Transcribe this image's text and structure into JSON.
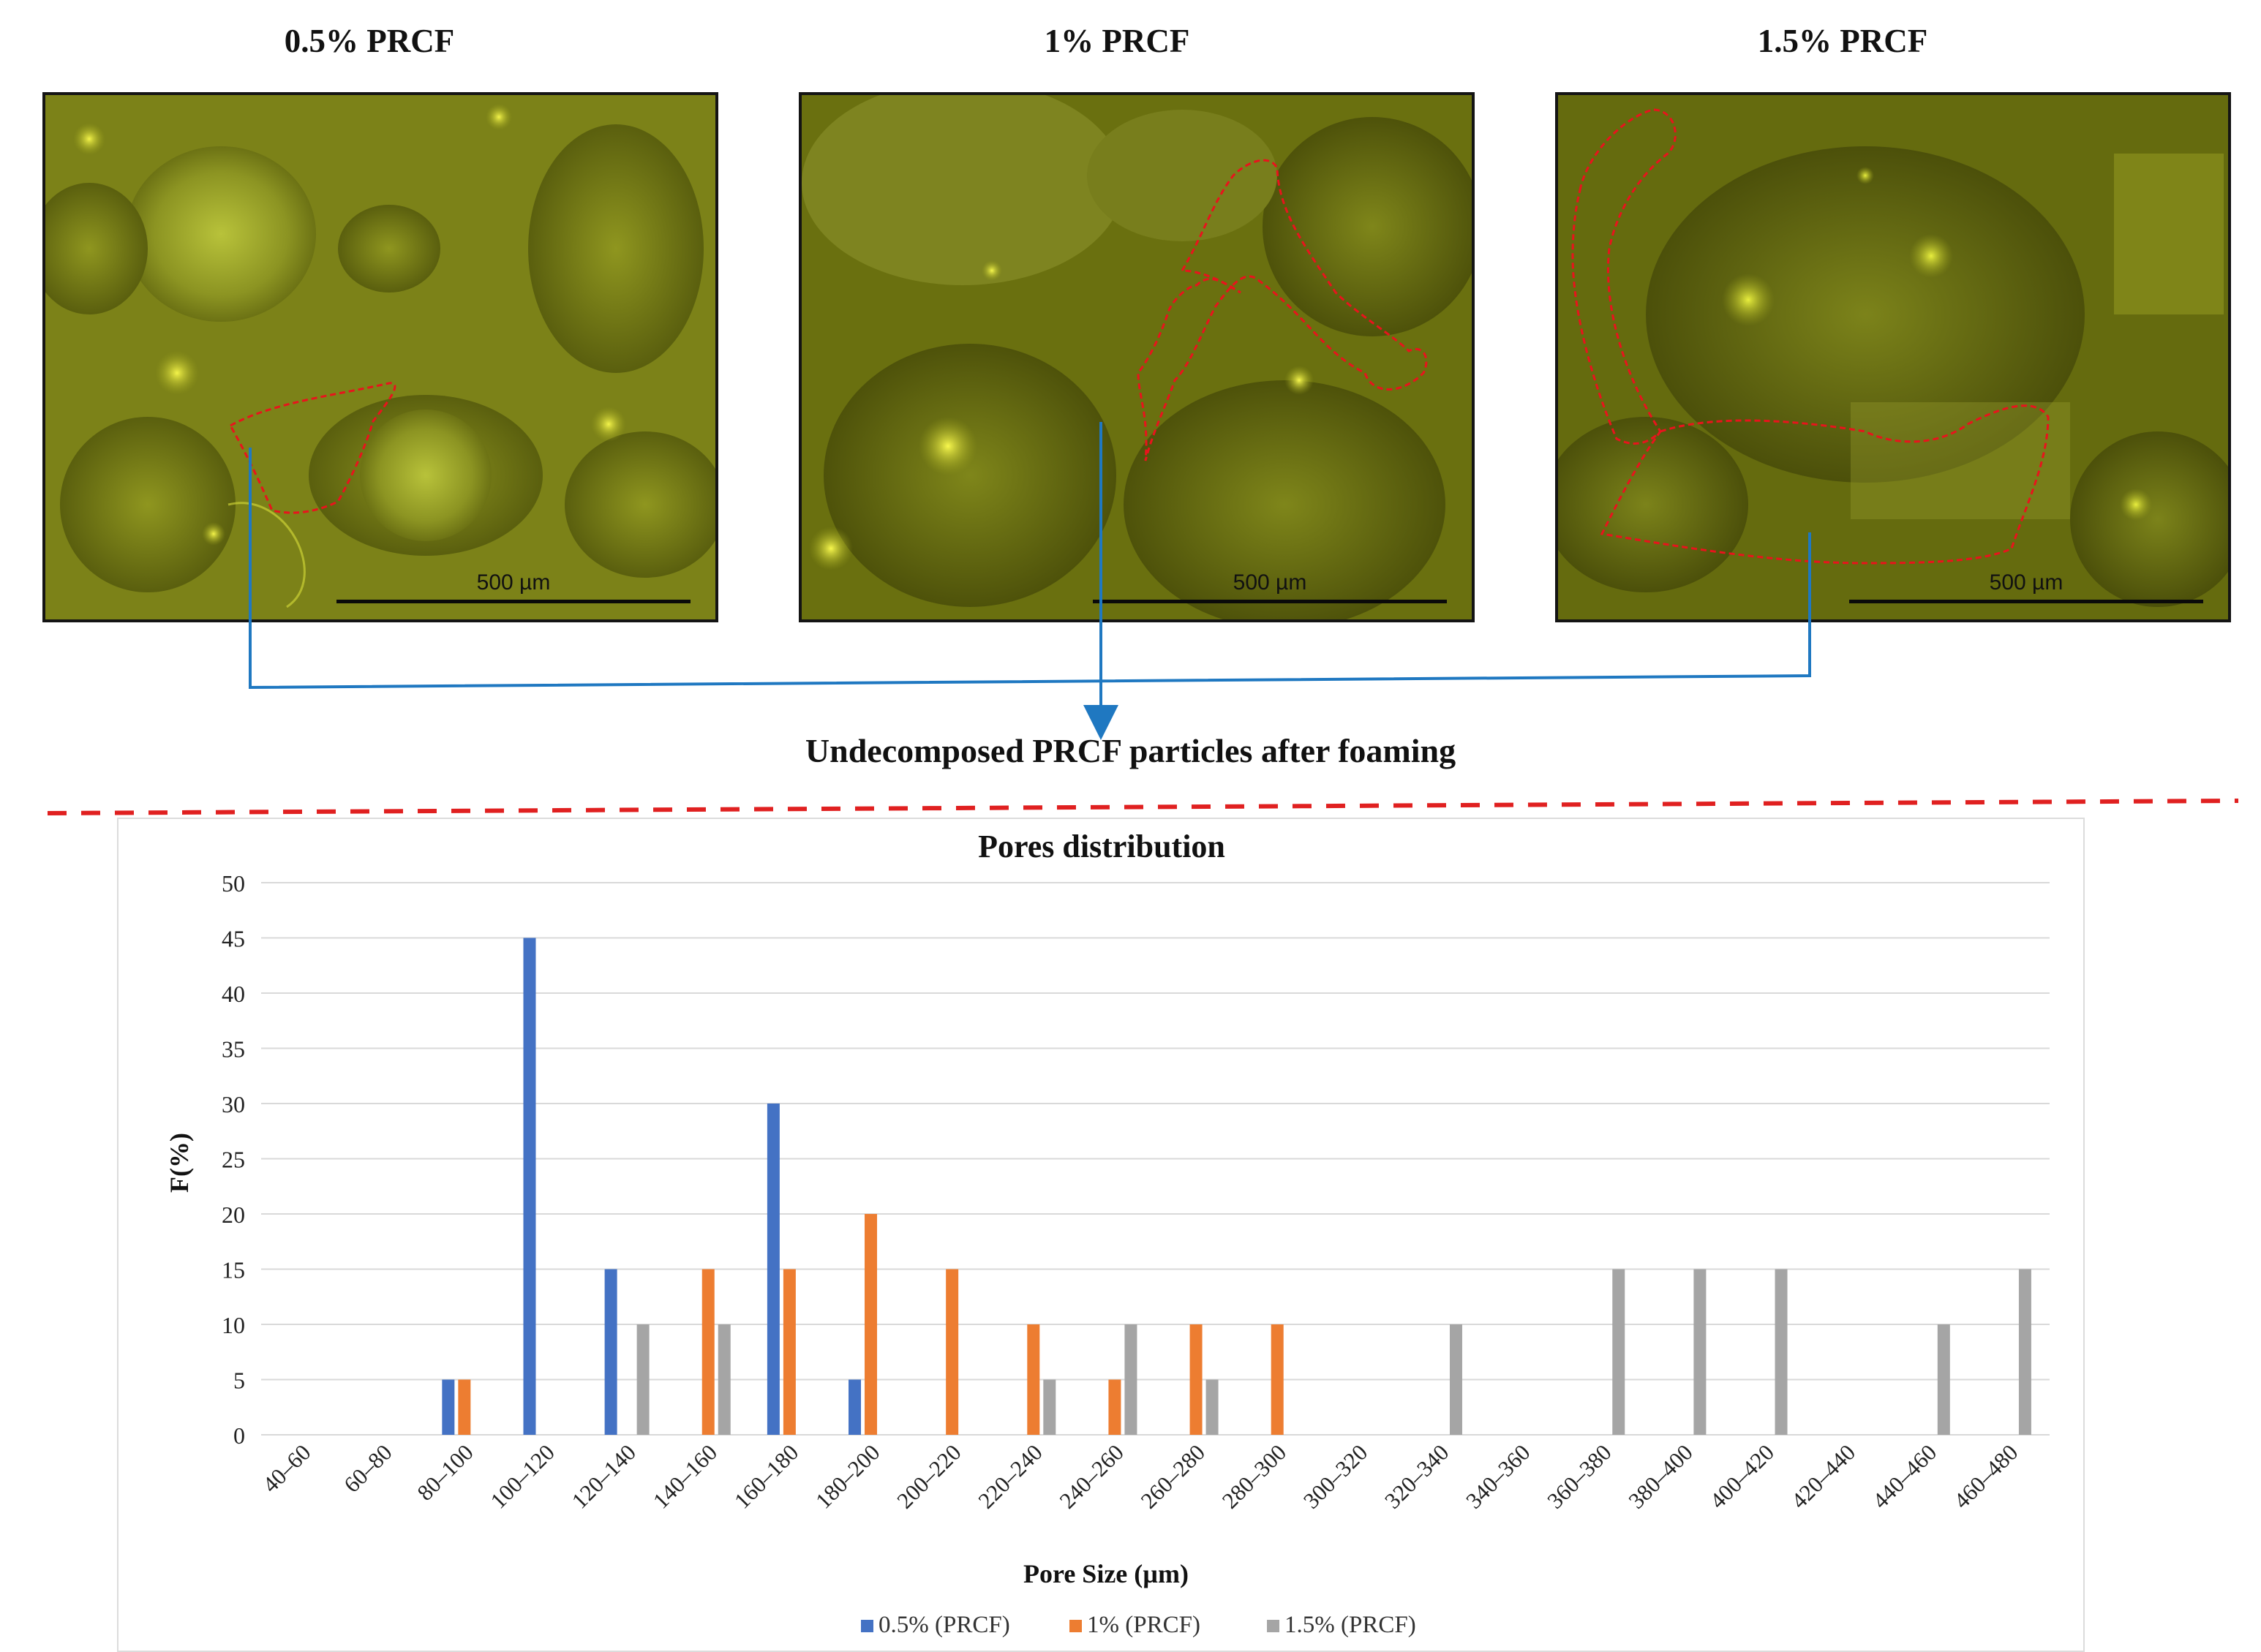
{
  "panels": [
    {
      "title": "0.5% PRCF",
      "scale_label": "500 µm"
    },
    {
      "title": "1% PRCF",
      "scale_label": "500 µm"
    },
    {
      "title": "1.5% PRCF",
      "scale_label": "500 µm"
    }
  ],
  "callout": {
    "label": "Undecomposed PRCF particles after foaming"
  },
  "colors": {
    "series_1": "#4472c4",
    "series_2": "#ed7d31",
    "series_3": "#a5a5a5",
    "outline": "#e8141c",
    "arrow": "#1f78c1",
    "divider": "#e02020"
  },
  "chart_data": {
    "type": "bar",
    "title": "Pores distribution",
    "xlabel": "Pore Size (µm)",
    "ylabel": "F(%)",
    "ylim": [
      0,
      50
    ],
    "yticks": [
      0,
      5,
      10,
      15,
      20,
      25,
      30,
      35,
      40,
      45,
      50
    ],
    "grid": true,
    "legend": "bottom",
    "categories": [
      "40–60",
      "60–80",
      "80–100",
      "100–120",
      "120–140",
      "140–160",
      "160–180",
      "180–200",
      "200–220",
      "220–240",
      "240–260",
      "260–280",
      "280–300",
      "300–320",
      "320–340",
      "340–360",
      "360–380",
      "380–400",
      "400–420",
      "420–440",
      "440–460",
      "460–480"
    ],
    "series": [
      {
        "name": "0.5% (PRCF)",
        "color": "#4472c4",
        "values": [
          0,
          0,
          5,
          45,
          15,
          0,
          30,
          5,
          0,
          0,
          0,
          0,
          0,
          0,
          0,
          0,
          0,
          0,
          0,
          0,
          0,
          0
        ]
      },
      {
        "name": "1% (PRCF)",
        "color": "#ed7d31",
        "values": [
          0,
          0,
          5,
          0,
          0,
          15,
          15,
          20,
          15,
          10,
          5,
          10,
          10,
          0,
          0,
          0,
          0,
          0,
          0,
          0,
          0,
          0
        ]
      },
      {
        "name": "1.5% (PRCF)",
        "color": "#a5a5a5",
        "values": [
          0,
          0,
          0,
          0,
          10,
          10,
          0,
          0,
          0,
          5,
          10,
          5,
          0,
          0,
          10,
          0,
          15,
          15,
          15,
          0,
          10,
          15
        ]
      }
    ]
  }
}
